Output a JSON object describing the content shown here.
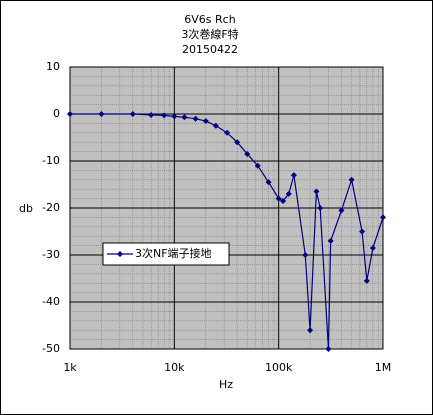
{
  "chart_data": {
    "type": "line",
    "title_lines": [
      "6V6s Rch",
      "3次巻線F特",
      "20150422"
    ],
    "x_label": "Hz",
    "y_label": "db",
    "x": [
      1000,
      2000,
      4000,
      6000,
      8000,
      10000,
      12500,
      16000,
      20000,
      25000,
      32000,
      40000,
      50000,
      63000,
      80000,
      100000,
      110000,
      125000,
      140000,
      180000,
      200000,
      230000,
      250000,
      300000,
      315000,
      400000,
      500000,
      630000,
      700000,
      800000,
      1000000
    ],
    "series": [
      {
        "name": "3次NF端子接地",
        "color": "#000080",
        "values": [
          0,
          0,
          0,
          -0.2,
          -0.3,
          -0.5,
          -0.7,
          -1,
          -1.5,
          -2.5,
          -4,
          -6,
          -8.5,
          -11,
          -14.5,
          -18,
          -18.5,
          -17,
          -13,
          -30,
          -46,
          -16.5,
          -20,
          -50,
          -27,
          -20.5,
          -14,
          -25,
          -35.5,
          -28.5,
          -22
        ]
      }
    ],
    "xlim": [
      1000,
      1000000
    ],
    "x_log": true,
    "xticks": [
      {
        "value": 1000,
        "label": "1k"
      },
      {
        "value": 10000,
        "label": "10k"
      },
      {
        "value": 100000,
        "label": "100k"
      },
      {
        "value": 1000000,
        "label": "1M"
      }
    ],
    "ylim": [
      -50,
      10
    ],
    "yticks": [
      -50,
      -40,
      -30,
      -20,
      -10,
      0,
      10
    ],
    "grid": true,
    "minor_grid": true,
    "legend": "left"
  }
}
